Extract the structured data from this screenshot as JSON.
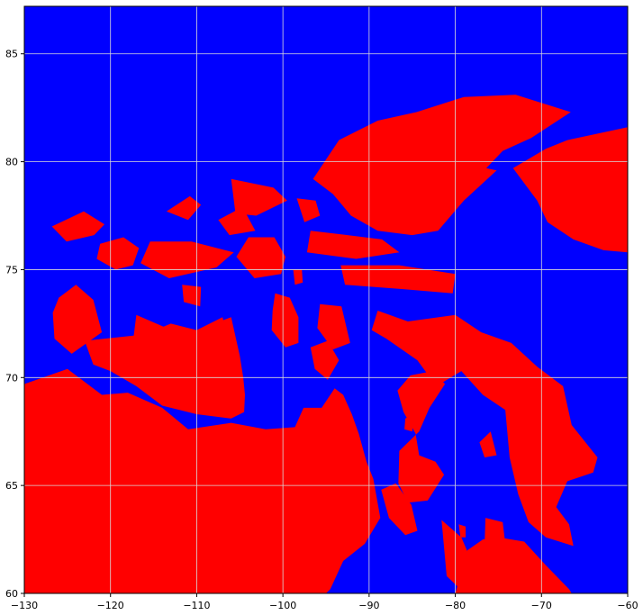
{
  "chart_data": {
    "type": "heatmap",
    "title": "",
    "xlabel": "",
    "ylabel": "",
    "xlim": [
      -130,
      -60
    ],
    "ylim": [
      60,
      87.2
    ],
    "grid": true,
    "x_ticks": [
      -130,
      -120,
      -110,
      -100,
      -90,
      -80,
      -70,
      -60
    ],
    "y_ticks": [
      60,
      65,
      70,
      75,
      80,
      85
    ],
    "x_tick_labels": [
      "−130",
      "−120",
      "−110",
      "−100",
      "−90",
      "−80",
      "−70",
      "−60"
    ],
    "y_tick_labels": [
      "60",
      "65",
      "70",
      "75",
      "80",
      "85"
    ],
    "classes": [
      {
        "value": 0,
        "color": "#0000ff"
      },
      {
        "value": 1,
        "color": "#ff0000"
      }
    ],
    "regions": [
      {
        "value": 1,
        "lonlat": [
          [
            -130,
            60
          ],
          [
            -130,
            69.7
          ],
          [
            -125,
            70.4
          ],
          [
            -121,
            69.2
          ],
          [
            -118,
            69.3
          ],
          [
            -114,
            68.6
          ],
          [
            -111,
            67.6
          ],
          [
            -106,
            67.9
          ],
          [
            -102,
            67.6
          ],
          [
            -98.6,
            67.7
          ],
          [
            -97.6,
            68.6
          ],
          [
            -95.5,
            68.6
          ],
          [
            -94,
            69.5
          ],
          [
            -93,
            69.2
          ],
          [
            -92,
            68.3
          ],
          [
            -91.2,
            67.4
          ],
          [
            -90.3,
            66.1
          ],
          [
            -89.5,
            65.3
          ],
          [
            -88.7,
            63.5
          ],
          [
            -90.5,
            62.3
          ],
          [
            -93,
            61.5
          ],
          [
            -94.5,
            60.2
          ],
          [
            -95,
            60
          ]
        ]
      },
      {
        "value": 1,
        "lonlat": [
          [
            -123,
            71.7
          ],
          [
            -116,
            72
          ],
          [
            -113,
            72.5
          ],
          [
            -110,
            72.2
          ],
          [
            -106,
            72.8
          ],
          [
            -105,
            71
          ],
          [
            -104.6,
            70
          ],
          [
            -104.4,
            69.2
          ],
          [
            -104.5,
            68.4
          ],
          [
            -106,
            68.1
          ],
          [
            -110,
            68.3
          ],
          [
            -114,
            68.7
          ],
          [
            -117,
            69.6
          ],
          [
            -120,
            70.3
          ],
          [
            -122,
            70.6
          ]
        ]
      },
      {
        "value": 1,
        "lonlat": [
          [
            -117,
            72.9
          ],
          [
            -113.5,
            72.3
          ],
          [
            -110,
            72.2
          ],
          [
            -107,
            72.8
          ],
          [
            -106.5,
            72
          ],
          [
            -109.5,
            70.8
          ],
          [
            -112,
            70.5
          ],
          [
            -115.8,
            70.6
          ],
          [
            -117.5,
            71.3
          ]
        ]
      },
      {
        "value": 1,
        "lonlat": [
          [
            -126,
            73.7
          ],
          [
            -124,
            74.3
          ],
          [
            -122,
            73.6
          ],
          [
            -121,
            72.1
          ],
          [
            -124.5,
            71.1
          ],
          [
            -126.5,
            71.8
          ],
          [
            -126.7,
            73
          ]
        ]
      },
      {
        "value": 1,
        "lonlat": [
          [
            -100.9,
            73.9
          ],
          [
            -99.2,
            73.7
          ],
          [
            -98.2,
            72.8
          ],
          [
            -98.2,
            71.6
          ],
          [
            -99.7,
            71.4
          ],
          [
            -101.3,
            72.2
          ],
          [
            -101.2,
            73.1
          ]
        ]
      },
      {
        "value": 1,
        "lonlat": [
          [
            -95.7,
            73.4
          ],
          [
            -93.2,
            73.3
          ],
          [
            -92.2,
            71.6
          ],
          [
            -94.2,
            71.3
          ],
          [
            -96,
            72.3
          ]
        ]
      },
      {
        "value": 1,
        "lonlat": [
          [
            -96.8,
            71.4
          ],
          [
            -94.8,
            71.7
          ],
          [
            -93.5,
            70.8
          ],
          [
            -94.8,
            69.9
          ],
          [
            -96.3,
            70.4
          ]
        ]
      },
      {
        "value": 1,
        "lonlat": [
          [
            -89,
            73.1
          ],
          [
            -85.5,
            72.6
          ],
          [
            -80,
            72.9
          ],
          [
            -77,
            72.1
          ],
          [
            -73.5,
            71.6
          ],
          [
            -70.5,
            70.5
          ],
          [
            -67.5,
            69.6
          ],
          [
            -66.5,
            67.8
          ],
          [
            -63.5,
            66.3
          ],
          [
            -64,
            65.6
          ],
          [
            -67,
            65.2
          ],
          [
            -68.3,
            64
          ],
          [
            -66.8,
            63.2
          ],
          [
            -66.3,
            62.2
          ],
          [
            -69.5,
            62.6
          ],
          [
            -71.5,
            63.3
          ],
          [
            -72.7,
            64.6
          ],
          [
            -73.7,
            66.3
          ],
          [
            -74.2,
            68.5
          ],
          [
            -76.8,
            69.2
          ],
          [
            -79.3,
            70.3
          ],
          [
            -82.2,
            69.6
          ],
          [
            -84.4,
            70.8
          ],
          [
            -88,
            71.8
          ],
          [
            -89.7,
            72.2
          ]
        ]
      },
      {
        "value": 1,
        "lonlat": [
          [
            -83,
            68.6
          ],
          [
            -81.2,
            69.7
          ],
          [
            -82.6,
            70.3
          ],
          [
            -85.2,
            70.1
          ],
          [
            -86.7,
            69.4
          ],
          [
            -86,
            68.4
          ],
          [
            -84.6,
            67.4
          ],
          [
            -84.2,
            66.4
          ],
          [
            -82.3,
            66.1
          ],
          [
            -81.3,
            65.5
          ],
          [
            -83.2,
            64.3
          ],
          [
            -85.5,
            64.2
          ],
          [
            -86.6,
            65.1
          ],
          [
            -86.5,
            66.6
          ],
          [
            -84.2,
            67.5
          ]
        ]
      },
      {
        "value": 1,
        "lonlat": [
          [
            -88.6,
            64.8
          ],
          [
            -86.9,
            65.1
          ],
          [
            -85.1,
            64.1
          ],
          [
            -84.4,
            62.9
          ],
          [
            -85.8,
            62.7
          ],
          [
            -87.7,
            63.5
          ]
        ]
      },
      {
        "value": 1,
        "lonlat": [
          [
            -81.6,
            63.4
          ],
          [
            -79.3,
            62.6
          ],
          [
            -77.8,
            61.2
          ],
          [
            -78.9,
            60
          ],
          [
            -81,
            60.8
          ]
        ]
      },
      {
        "value": 1,
        "lonlat": [
          [
            -80,
            60
          ],
          [
            -78.6,
            62
          ],
          [
            -76.8,
            62.5
          ],
          [
            -75,
            62.6
          ],
          [
            -72,
            62.4
          ],
          [
            -69.5,
            61.3
          ],
          [
            -66.8,
            60.2
          ],
          [
            -66.5,
            60
          ]
        ]
      },
      {
        "value": 1,
        "lonlat": [
          [
            -96.5,
            79.2
          ],
          [
            -93.5,
            81
          ],
          [
            -89,
            81.9
          ],
          [
            -84.5,
            82.3
          ],
          [
            -79,
            83
          ],
          [
            -73,
            83.1
          ],
          [
            -66.6,
            82.3
          ],
          [
            -71.2,
            81.1
          ],
          [
            -74.5,
            80.5
          ],
          [
            -76.4,
            79.7
          ],
          [
            -75.2,
            79.6
          ],
          [
            -79,
            78.2
          ],
          [
            -82,
            76.8
          ],
          [
            -85,
            76.6
          ],
          [
            -89,
            76.8
          ],
          [
            -92.1,
            77.5
          ],
          [
            -94.2,
            78.5
          ]
        ]
      },
      {
        "value": 1,
        "lonlat": [
          [
            -60,
            81.6
          ],
          [
            -67,
            81
          ],
          [
            -69.5,
            80.6
          ],
          [
            -73.3,
            79.7
          ],
          [
            -70.5,
            78.2
          ],
          [
            -69.3,
            77.2
          ],
          [
            -66.3,
            76.4
          ],
          [
            -62.8,
            75.9
          ],
          [
            -60,
            75.8
          ]
        ]
      },
      {
        "value": 1,
        "lonlat": [
          [
            -104,
            76.5
          ],
          [
            -101,
            76.5
          ],
          [
            -99.7,
            75.6
          ],
          [
            -100.2,
            74.8
          ],
          [
            -103.3,
            74.6
          ],
          [
            -105.4,
            75.6
          ]
        ]
      },
      {
        "value": 1,
        "lonlat": [
          [
            -96.8,
            76.8
          ],
          [
            -92.5,
            76.6
          ],
          [
            -88.5,
            76.4
          ],
          [
            -86.5,
            75.8
          ],
          [
            -91.5,
            75.5
          ],
          [
            -97.2,
            75.8
          ]
        ]
      },
      {
        "value": 1,
        "lonlat": [
          [
            -93.3,
            75.2
          ],
          [
            -86.5,
            75.2
          ],
          [
            -80,
            74.8
          ],
          [
            -80.3,
            73.9
          ],
          [
            -86.2,
            74.1
          ],
          [
            -92.8,
            74.3
          ]
        ]
      },
      {
        "value": 1,
        "lonlat": [
          [
            -121.2,
            76.2
          ],
          [
            -118.5,
            76.5
          ],
          [
            -116.7,
            76
          ],
          [
            -117.4,
            75.2
          ],
          [
            -119.4,
            75
          ],
          [
            -121.6,
            75.5
          ]
        ]
      },
      {
        "value": 1,
        "lonlat": [
          [
            -115.4,
            76.3
          ],
          [
            -110.6,
            76.3
          ],
          [
            -105.7,
            75.8
          ],
          [
            -107.7,
            75.1
          ],
          [
            -113.2,
            74.6
          ],
          [
            -116.5,
            75.3
          ]
        ]
      },
      {
        "value": 1,
        "lonlat": [
          [
            -125.1,
            76.3
          ],
          [
            -121.9,
            76.6
          ],
          [
            -120.7,
            77.1
          ],
          [
            -123.1,
            77.7
          ],
          [
            -126.8,
            77
          ]
        ]
      },
      {
        "value": 1,
        "lonlat": [
          [
            -107.5,
            77.3
          ],
          [
            -104.7,
            77.9
          ],
          [
            -103.2,
            76.8
          ],
          [
            -106.2,
            76.6
          ]
        ]
      },
      {
        "value": 1,
        "lonlat": [
          [
            -106,
            79.2
          ],
          [
            -101.1,
            78.8
          ],
          [
            -99.5,
            78.2
          ],
          [
            -103.1,
            77.5
          ],
          [
            -105.5,
            77.6
          ]
        ]
      },
      {
        "value": 1,
        "lonlat": [
          [
            -98.4,
            78.3
          ],
          [
            -96.2,
            78.2
          ],
          [
            -95.7,
            77.5
          ],
          [
            -97.5,
            77.2
          ]
        ]
      },
      {
        "value": 1,
        "lonlat": [
          [
            -113.5,
            77.7
          ],
          [
            -110.8,
            78.4
          ],
          [
            -109.5,
            78
          ],
          [
            -111,
            77.3
          ]
        ]
      },
      {
        "value": 1,
        "lonlat": [
          [
            -98.8,
            75
          ],
          [
            -97.8,
            75
          ],
          [
            -97.7,
            74.4
          ],
          [
            -98.6,
            74.3
          ]
        ]
      },
      {
        "value": 1,
        "lonlat": [
          [
            -111.7,
            74.3
          ],
          [
            -109.5,
            74.2
          ],
          [
            -109.6,
            73.3
          ],
          [
            -111.5,
            73.5
          ]
        ]
      },
      {
        "value": 1,
        "lonlat": [
          [
            -85.8,
            68.1
          ],
          [
            -84.8,
            68.3
          ],
          [
            -85,
            67.5
          ],
          [
            -85.9,
            67.6
          ]
        ]
      },
      {
        "value": 1,
        "lonlat": [
          [
            -77.2,
            67
          ],
          [
            -75.9,
            67.5
          ],
          [
            -75.2,
            66.4
          ],
          [
            -76.6,
            66.3
          ]
        ]
      },
      {
        "value": 1,
        "lonlat": [
          [
            -79.6,
            63.2
          ],
          [
            -78.8,
            63.1
          ],
          [
            -78.8,
            62.6
          ],
          [
            -79.4,
            62.6
          ]
        ]
      },
      {
        "value": 1,
        "lonlat": [
          [
            -76.5,
            63.5
          ],
          [
            -74.5,
            63.3
          ],
          [
            -74.2,
            62.3
          ],
          [
            -76.6,
            62.3
          ]
        ]
      }
    ]
  }
}
